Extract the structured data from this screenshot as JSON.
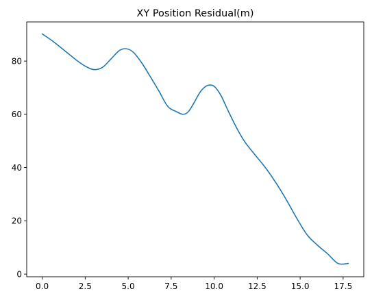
{
  "chart_data": {
    "type": "line",
    "title": "XY Position Residual(m)",
    "xlabel": "",
    "ylabel": "",
    "xlim": [
      -0.9,
      18.7
    ],
    "ylim": [
      -1,
      94.7
    ],
    "xticks": [
      "0.0",
      "2.5",
      "5.0",
      "7.5",
      "10.0",
      "12.5",
      "15.0",
      "17.5"
    ],
    "yticks": [
      "0",
      "20",
      "40",
      "60",
      "80"
    ],
    "grid": false,
    "series": [
      {
        "color": "#1f77b4",
        "x": [
          0.0,
          0.5,
          1.0,
          1.5,
          2.0,
          2.5,
          3.0,
          3.5,
          4.0,
          4.5,
          4.9,
          5.3,
          5.8,
          6.3,
          6.8,
          7.3,
          7.8,
          8.2,
          8.5,
          8.8,
          9.2,
          9.6,
          10.0,
          10.4,
          10.8,
          11.3,
          11.8,
          12.4,
          13.0,
          13.6,
          14.2,
          14.8,
          15.4,
          16.0,
          16.6,
          17.2,
          17.8
        ],
        "y": [
          90.2,
          88.0,
          85.5,
          82.9,
          80.3,
          78.1,
          76.8,
          77.6,
          80.8,
          84.0,
          84.6,
          83.3,
          79.2,
          74.0,
          68.6,
          63.0,
          61.0,
          60.0,
          61.0,
          64.0,
          68.5,
          70.8,
          70.5,
          67.0,
          61.5,
          55.0,
          49.5,
          44.6,
          39.8,
          34.2,
          27.9,
          21.0,
          14.8,
          10.9,
          7.6,
          4.0,
          4.0
        ]
      }
    ]
  }
}
